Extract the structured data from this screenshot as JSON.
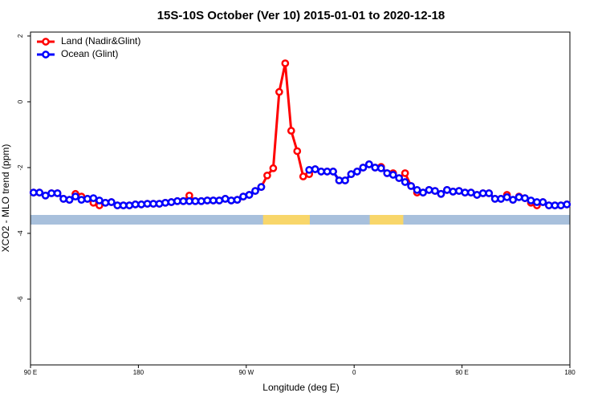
{
  "chart_data": {
    "type": "line",
    "title": "15S-10S October (Ver 10)   2015-01-01 to 2020-12-18",
    "x_label": "Longitude (deg E)",
    "y_label": "XCO2 - MLO trend (ppm)",
    "x": [
      92.5,
      97.5,
      102.5,
      107.5,
      112.5,
      117.5,
      122.5,
      127.5,
      132.5,
      137.5,
      142.5,
      147.5,
      152.5,
      157.5,
      162.5,
      167.5,
      172.5,
      177.5,
      182.5,
      187.5,
      192.5,
      197.5,
      202.5,
      207.5,
      212.5,
      217.5,
      222.5,
      227.5,
      232.5,
      237.5,
      242.5,
      247.5,
      252.5,
      257.5,
      262.5,
      267.5,
      272.5,
      277.5,
      282.5,
      287.5,
      292.5,
      297.5,
      302.5,
      307.5,
      312.5,
      317.5,
      322.5,
      327.5,
      332.5,
      337.5,
      342.5,
      347.5,
      352.5,
      357.5,
      362.5,
      367.5,
      372.5,
      377.5,
      382.5,
      387.5,
      392.5,
      397.5,
      402.5,
      407.5,
      412.5,
      417.5,
      422.5,
      427.5,
      432.5,
      437.5,
      442.5,
      447.5,
      452.5,
      457.5,
      462.5,
      467.5,
      472.5,
      477.5,
      482.5,
      487.5,
      492.5,
      497.5,
      502.5,
      507.5,
      512.5,
      517.5,
      522.5,
      527.5,
      532.5,
      537.5
    ],
    "series": [
      {
        "name": "Land (Nadir&Glint)",
        "color": "#ff0000",
        "values": [
          -2.76,
          -2.76,
          -2.85,
          -2.78,
          -2.78,
          -2.95,
          -2.98,
          -2.8,
          -2.88,
          -2.95,
          -3.07,
          -3.15,
          -3.07,
          -3.05,
          -3.15,
          -3.15,
          -3.15,
          -3.12,
          -3.12,
          -3.1,
          -3.1,
          -3.1,
          -3.07,
          -3.05,
          -3.02,
          -3.02,
          -2.85,
          -3.02,
          -3.02,
          -3.0,
          -3.0,
          -3.0,
          -2.95,
          -3.0,
          -2.98,
          -2.88,
          -2.83,
          -2.71,
          -2.59,
          -2.24,
          -2.02,
          0.3,
          1.17,
          -0.88,
          -1.5,
          -2.27,
          -2.2,
          -2.05,
          -2.12,
          -2.12,
          -2.12,
          -2.39,
          -2.39,
          -2.2,
          -2.12,
          -2.0,
          -1.9,
          -2.0,
          -1.98,
          -2.17,
          -2.17,
          -2.32,
          -2.17,
          -2.56,
          -2.76,
          -2.76,
          -2.68,
          -2.71,
          -2.8,
          -2.68,
          -2.73,
          -2.71,
          -2.76,
          -2.76,
          -2.83,
          -2.78,
          -2.78,
          -2.95,
          -2.95,
          -2.83,
          -2.98,
          -2.88,
          -2.93,
          -3.07,
          -3.15,
          -3.05,
          -3.15,
          -3.15,
          -3.15,
          -3.12
        ]
      },
      {
        "name": "Ocean (Glint)",
        "color": "#0000ff",
        "values": [
          -2.76,
          -2.76,
          -2.85,
          -2.78,
          -2.78,
          -2.95,
          -2.98,
          -2.88,
          -2.98,
          -2.95,
          -2.93,
          -3.0,
          -3.07,
          -3.05,
          -3.15,
          -3.15,
          -3.15,
          -3.12,
          -3.12,
          -3.1,
          -3.1,
          -3.1,
          -3.07,
          -3.05,
          -3.02,
          -3.02,
          -3.02,
          -3.02,
          -3.02,
          -3.0,
          -3.0,
          -3.0,
          -2.95,
          -3.0,
          -2.98,
          -2.88,
          -2.83,
          -2.71,
          -2.59,
          null,
          null,
          null,
          null,
          null,
          null,
          null,
          -2.07,
          -2.05,
          -2.12,
          -2.12,
          -2.12,
          -2.39,
          -2.39,
          -2.2,
          -2.12,
          -2.0,
          -1.9,
          -2.0,
          -2.02,
          -2.17,
          -2.22,
          -2.32,
          -2.44,
          -2.56,
          -2.68,
          -2.76,
          -2.68,
          -2.71,
          -2.8,
          -2.68,
          -2.73,
          -2.71,
          -2.76,
          -2.76,
          -2.83,
          -2.78,
          -2.78,
          -2.95,
          -2.95,
          -2.9,
          -2.98,
          -2.9,
          -2.93,
          -3.0,
          -3.05,
          -3.05,
          -3.15,
          -3.15,
          -3.15,
          -3.12
        ]
      }
    ],
    "land_spans": [
      [
        284,
        323
      ],
      [
        373,
        401
      ]
    ],
    "xlim": [
      90,
      540
    ],
    "xticks": [
      {
        "value": 90,
        "label": "90 E"
      },
      180,
      {
        "value": 270,
        "label": "90 W"
      },
      {
        "value": 360,
        "label": "0"
      },
      {
        "value": 450,
        "label": "90 E"
      },
      {
        "value": 540,
        "label": "180"
      }
    ],
    "ylim": [
      -8,
      2.12
    ],
    "yticks": [
      2,
      0,
      -2,
      -4,
      -6
    ],
    "legend": "top-left"
  }
}
